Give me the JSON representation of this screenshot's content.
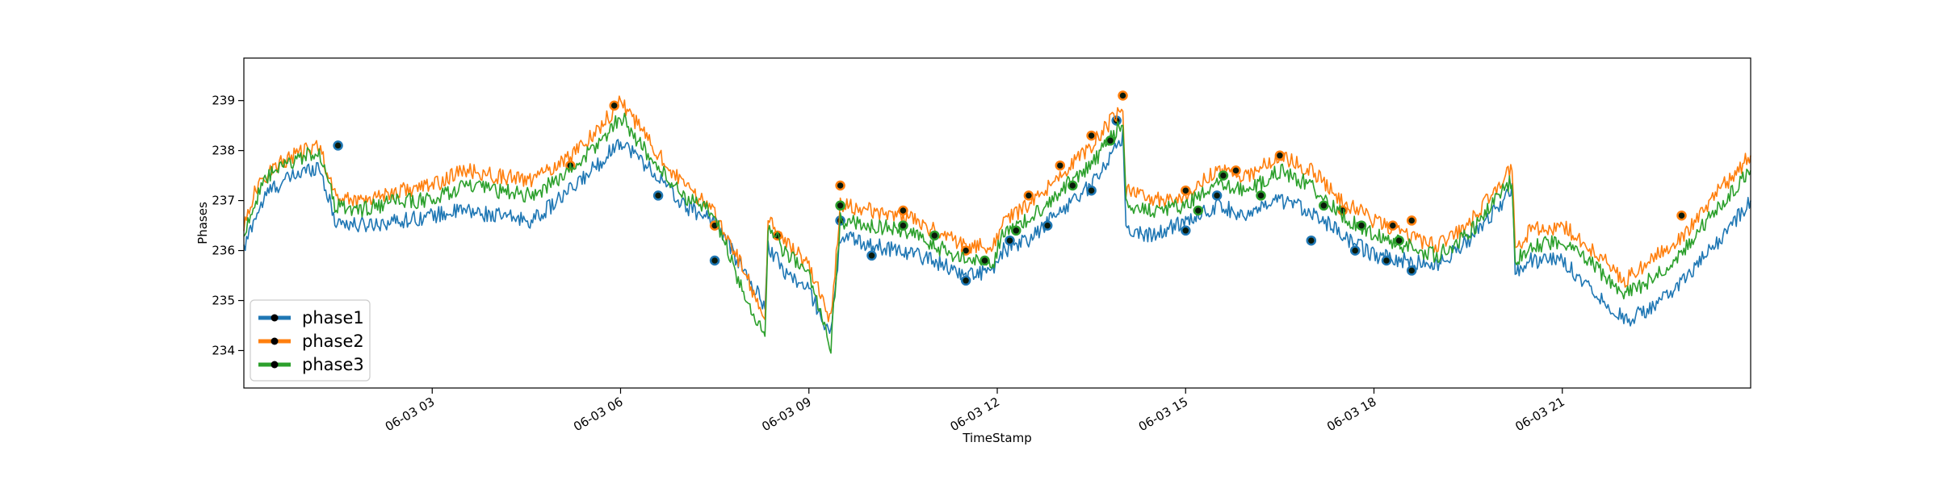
{
  "chart_data": {
    "type": "line",
    "title": "",
    "xlabel": "TimeStamp",
    "ylabel": "Phases",
    "x_range": [
      0,
      24
    ],
    "ylim": [
      233.25,
      239.85
    ],
    "yticks": [
      234,
      235,
      236,
      237,
      238,
      239
    ],
    "ytick_labels": [
      "234",
      "235",
      "236",
      "237",
      "238",
      "239"
    ],
    "xticks": [
      3,
      6,
      9,
      12,
      15,
      18,
      21
    ],
    "xtick_labels": [
      "06-03 03",
      "06-03 06",
      "06-03 09",
      "06-03 12",
      "06-03 15",
      "06-03 18",
      "06-03 21"
    ],
    "grid": false,
    "legend": {
      "position": "lower-left"
    },
    "series": [
      {
        "name": "phase1",
        "color": "#1f77b4",
        "x": [
          0.0,
          0.15,
          0.4,
          0.8,
          1.2,
          1.45,
          1.8,
          2.5,
          3.0,
          3.5,
          4.0,
          4.6,
          5.2,
          5.7,
          6.0,
          6.5,
          7.0,
          7.5,
          8.0,
          8.3,
          8.35,
          8.6,
          9.0,
          9.35,
          9.5,
          10.0,
          10.5,
          11.0,
          11.5,
          11.95,
          12.1,
          12.5,
          13.0,
          13.5,
          14.0,
          14.05,
          14.5,
          15.0,
          15.5,
          16.0,
          16.5,
          17.0,
          17.5,
          18.0,
          18.5,
          19.0,
          19.5,
          20.2,
          20.25,
          20.5,
          21.0,
          21.5,
          22.0,
          22.5,
          23.0,
          23.5,
          24.0
        ],
        "values": [
          236.0,
          236.6,
          237.2,
          237.5,
          237.7,
          236.6,
          236.5,
          236.6,
          236.7,
          236.8,
          236.7,
          236.6,
          237.2,
          237.8,
          238.2,
          237.6,
          236.9,
          236.6,
          235.5,
          234.9,
          236.1,
          235.6,
          235.2,
          234.3,
          236.3,
          236.1,
          236.0,
          235.8,
          235.5,
          235.6,
          236.0,
          236.2,
          236.8,
          237.3,
          238.3,
          236.4,
          236.3,
          236.6,
          236.9,
          236.7,
          237.0,
          236.8,
          236.3,
          235.9,
          235.8,
          235.7,
          236.2,
          237.2,
          235.6,
          235.8,
          235.8,
          235.2,
          234.6,
          234.9,
          235.5,
          236.2,
          237.0
        ],
        "markers": [
          [
            1.5,
            238.1
          ],
          [
            6.6,
            237.1
          ],
          [
            7.5,
            235.8
          ],
          [
            9.5,
            236.6
          ],
          [
            10.0,
            235.9
          ],
          [
            11.5,
            235.4
          ],
          [
            12.2,
            236.2
          ],
          [
            12.8,
            236.5
          ],
          [
            13.5,
            237.2
          ],
          [
            13.9,
            238.6
          ],
          [
            15.0,
            236.4
          ],
          [
            15.5,
            237.1
          ],
          [
            17.0,
            236.2
          ],
          [
            17.7,
            236.0
          ],
          [
            18.2,
            235.8
          ],
          [
            18.6,
            235.6
          ]
        ]
      },
      {
        "name": "phase2",
        "color": "#ff7f0e",
        "x": [
          0.0,
          0.15,
          0.4,
          0.8,
          1.2,
          1.45,
          1.8,
          2.5,
          3.0,
          3.5,
          4.0,
          4.6,
          5.2,
          5.7,
          6.0,
          6.5,
          7.0,
          7.5,
          8.0,
          8.3,
          8.35,
          8.6,
          9.0,
          9.35,
          9.5,
          10.0,
          10.5,
          11.0,
          11.5,
          11.95,
          12.1,
          12.5,
          13.0,
          13.5,
          14.0,
          14.05,
          14.5,
          15.0,
          15.5,
          16.0,
          16.5,
          17.0,
          17.5,
          18.0,
          18.5,
          19.0,
          19.5,
          20.2,
          20.25,
          20.5,
          21.0,
          21.5,
          22.0,
          22.5,
          23.0,
          23.5,
          24.0
        ],
        "values": [
          236.5,
          237.1,
          237.6,
          237.9,
          238.1,
          237.1,
          237.0,
          237.2,
          237.3,
          237.6,
          237.5,
          237.4,
          237.9,
          238.5,
          239.0,
          238.1,
          237.3,
          236.8,
          235.5,
          234.5,
          236.7,
          236.2,
          235.7,
          234.6,
          236.9,
          236.8,
          236.7,
          236.4,
          236.1,
          236.1,
          236.6,
          236.9,
          237.5,
          238.1,
          238.9,
          237.2,
          237.0,
          237.1,
          237.6,
          237.5,
          237.9,
          237.6,
          237.0,
          236.6,
          236.3,
          236.1,
          236.5,
          237.7,
          236.0,
          236.4,
          236.5,
          236.0,
          235.4,
          235.9,
          236.4,
          237.2,
          237.9
        ],
        "markers": [
          [
            5.2,
            237.7
          ],
          [
            5.9,
            238.9
          ],
          [
            7.5,
            236.5
          ],
          [
            8.5,
            236.3
          ],
          [
            9.5,
            237.3
          ],
          [
            10.5,
            236.8
          ],
          [
            11.5,
            236.0
          ],
          [
            12.5,
            237.1
          ],
          [
            13.0,
            237.7
          ],
          [
            13.5,
            238.3
          ],
          [
            14.0,
            239.1
          ],
          [
            15.0,
            237.2
          ],
          [
            15.8,
            237.6
          ],
          [
            16.5,
            237.9
          ],
          [
            17.5,
            236.8
          ],
          [
            18.3,
            236.5
          ],
          [
            18.6,
            236.6
          ],
          [
            22.9,
            236.7
          ]
        ]
      },
      {
        "name": "phase3",
        "color": "#2ca02c",
        "x": [
          0.0,
          0.15,
          0.4,
          0.8,
          1.2,
          1.45,
          1.8,
          2.5,
          3.0,
          3.5,
          4.0,
          4.6,
          5.2,
          5.7,
          6.0,
          6.5,
          7.0,
          7.5,
          8.0,
          8.3,
          8.35,
          8.6,
          9.0,
          9.35,
          9.5,
          10.0,
          10.5,
          11.0,
          11.5,
          11.95,
          12.1,
          12.5,
          13.0,
          13.5,
          14.0,
          14.05,
          14.5,
          15.0,
          15.5,
          16.0,
          16.5,
          17.0,
          17.5,
          18.0,
          18.5,
          19.0,
          19.5,
          20.2,
          20.25,
          20.5,
          21.0,
          21.5,
          22.0,
          22.5,
          23.0,
          23.5,
          24.0
        ],
        "values": [
          236.3,
          236.9,
          237.5,
          237.8,
          238.0,
          236.9,
          236.8,
          237.0,
          237.0,
          237.3,
          237.2,
          237.1,
          237.6,
          238.2,
          238.7,
          237.8,
          237.1,
          236.7,
          235.0,
          234.3,
          236.5,
          236.0,
          235.5,
          234.1,
          236.6,
          236.5,
          236.4,
          236.1,
          235.8,
          235.8,
          236.4,
          236.6,
          237.2,
          237.7,
          238.6,
          236.9,
          236.8,
          236.9,
          237.3,
          237.2,
          237.6,
          237.3,
          236.7,
          236.3,
          236.1,
          235.9,
          236.3,
          237.4,
          235.8,
          236.1,
          236.2,
          235.7,
          235.1,
          235.5,
          236.1,
          236.9,
          237.6
        ],
        "markers": [
          [
            9.5,
            236.9
          ],
          [
            10.5,
            236.5
          ],
          [
            11.0,
            236.3
          ],
          [
            11.8,
            235.8
          ],
          [
            12.3,
            236.4
          ],
          [
            13.2,
            237.3
          ],
          [
            13.8,
            238.2
          ],
          [
            15.2,
            236.8
          ],
          [
            15.6,
            237.5
          ],
          [
            16.2,
            237.1
          ],
          [
            17.2,
            236.9
          ],
          [
            17.8,
            236.5
          ],
          [
            18.4,
            236.2
          ]
        ]
      }
    ]
  }
}
